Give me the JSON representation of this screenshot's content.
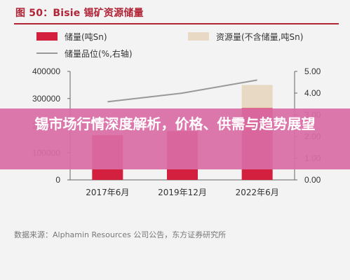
{
  "figure": {
    "title": "图 50：Bisie 锡矿资源储量",
    "source": "数据来源：Alphamin Resources 公司公告，东方证券研究所"
  },
  "overlay": {
    "headline": "锡市场行情深度解析，价格、供需与趋势展望"
  },
  "chart_data": {
    "type": "bar",
    "categories": [
      "2017年6月",
      "2019年12月",
      "2022年6月"
    ],
    "series": [
      {
        "name": "储量(吨Sn)",
        "kind": "bar",
        "axis": "left",
        "color": "#d3203f",
        "values": [
          165000,
          180000,
          265000
        ]
      },
      {
        "name": "资源量(不含储量,吨Sn)",
        "kind": "bar",
        "axis": "left",
        "color": "#e8d9c4",
        "values": [
          0,
          0,
          85000
        ]
      },
      {
        "name": "储量品位(%,右轴)",
        "kind": "line",
        "axis": "right",
        "color": "#999999",
        "values": [
          3.6,
          4.0,
          4.6
        ]
      }
    ],
    "left_axis": {
      "min": 0,
      "max": 400000,
      "ticks": [
        "0",
        "100000",
        "200000",
        "300000",
        "400000"
      ]
    },
    "right_axis": {
      "min": 0,
      "max": 5,
      "ticks": [
        "0.00",
        "1.00",
        "2.00",
        "3.00",
        "4.00",
        "5.00"
      ]
    },
    "stacked": true,
    "legend_position": "top",
    "grid": false
  }
}
